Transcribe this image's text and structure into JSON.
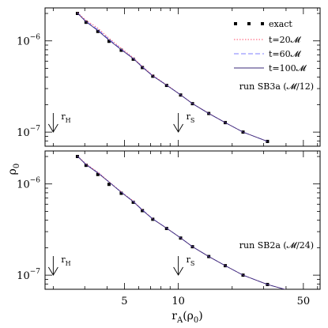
{
  "figure": {
    "ylabel": "ρ",
    "ylabel_sub": "0",
    "xlabel": "r",
    "xlabel_sub": "A",
    "xlabel_suffix": "(ρ",
    "xlabel_suffix_sub": "0",
    "xlabel_close": ")",
    "x_ticks": [
      {
        "value": 5,
        "label": "5"
      },
      {
        "value": 10,
        "label": "10"
      },
      {
        "value": 50,
        "label": "50"
      }
    ],
    "colors": {
      "exact": "#000000",
      "t20": "#ff4d6a",
      "t60": "#7f7fff",
      "t100": "#3b2a78"
    }
  },
  "legend": {
    "exact": "exact",
    "t20": "t=20𝓜",
    "t60": "t=60𝓜",
    "t100": "t=100𝓜"
  },
  "chart_data": [
    {
      "type": "line",
      "panel": "top",
      "annotation": "run SB3a (𝓜/12)",
      "xscale": "log",
      "yscale": "log",
      "xlim": [
        1.8,
        62
      ],
      "ylim": [
        7e-08,
        2.3e-06
      ],
      "y_ticks": [
        {
          "value": 1e-06,
          "base": "10",
          "exp": "−6"
        },
        {
          "value": 1e-07,
          "base": "10",
          "exp": "−7"
        }
      ],
      "markers": [
        {
          "label": "r",
          "sub": "H",
          "x": 2.0
        },
        {
          "label": "r",
          "sub": "S",
          "x": 10.0
        }
      ],
      "series": [
        {
          "name": "exact",
          "style": "squares",
          "x": [
            2.73,
            3.05,
            3.55,
            4.1,
            4.8,
            5.6,
            6.3,
            7.2,
            8.6,
            10.3,
            12.0,
            14.8,
            18.3,
            23.0,
            31.5
          ],
          "y": [
            2e-06,
            1.6e-06,
            1.27e-06,
            9.9e-07,
            7.9e-07,
            6.3e-07,
            5.1e-07,
            4.1e-07,
            3.25e-07,
            2.55e-07,
            2.05e-07,
            1.6e-07,
            1.27e-07,
            1e-07,
            7.9e-08
          ]
        },
        {
          "name": "t=20𝓜",
          "style": "dotted",
          "x": [
            2.73,
            3.05,
            3.55,
            4.1,
            4.8,
            5.6,
            6.3,
            7.2,
            8.6,
            10.3,
            12.0,
            14.8,
            18.3,
            23.0,
            31.5
          ],
          "y": [
            2.05e-06,
            1.68e-06,
            1.38e-06,
            1.07e-06,
            8.3e-07,
            6.55e-07,
            5.25e-07,
            4.2e-07,
            3.3e-07,
            2.57e-07,
            2.06e-07,
            1.61e-07,
            1.27e-07,
            1e-07,
            7.9e-08
          ]
        },
        {
          "name": "t=60𝓜",
          "style": "dashed",
          "x": [
            2.73,
            3.05,
            3.55,
            4.1,
            4.8,
            5.6,
            6.3,
            7.2,
            8.6,
            10.3,
            12.0,
            14.8,
            18.3,
            23.0,
            31.5
          ],
          "y": [
            2.03e-06,
            1.64e-06,
            1.33e-06,
            1.04e-06,
            8.1e-07,
            6.45e-07,
            5.2e-07,
            4.15e-07,
            3.28e-07,
            2.56e-07,
            2.05e-07,
            1.6e-07,
            1.27e-07,
            1e-07,
            7.9e-08
          ]
        },
        {
          "name": "t=100𝓜",
          "style": "solid",
          "x": [
            2.73,
            3.05,
            3.55,
            4.1,
            4.8,
            5.6,
            6.3,
            7.2,
            8.6,
            10.3,
            12.0,
            14.8,
            18.3,
            23.0,
            31.5
          ],
          "y": [
            2.02e-06,
            1.62e-06,
            1.3e-06,
            1.02e-06,
            8e-07,
            6.4e-07,
            5.15e-07,
            4.12e-07,
            3.27e-07,
            2.56e-07,
            2.05e-07,
            1.6e-07,
            1.27e-07,
            1e-07,
            7.9e-08
          ]
        }
      ]
    },
    {
      "type": "line",
      "panel": "bottom",
      "annotation": "run SB2a (𝓜/24)",
      "xscale": "log",
      "yscale": "log",
      "xlim": [
        1.8,
        62
      ],
      "ylim": [
        7e-08,
        2.3e-06
      ],
      "y_ticks": [
        {
          "value": 1e-06,
          "base": "10",
          "exp": "−6"
        },
        {
          "value": 1e-07,
          "base": "10",
          "exp": "−7"
        }
      ],
      "markers": [
        {
          "label": "r",
          "sub": "H",
          "x": 2.0
        },
        {
          "label": "r",
          "sub": "S",
          "x": 10.0
        }
      ],
      "series": [
        {
          "name": "exact",
          "style": "squares",
          "x": [
            2.73,
            3.05,
            3.55,
            4.1,
            4.8,
            5.6,
            6.3,
            7.2,
            8.6,
            10.3,
            12.0,
            14.8,
            18.3,
            23.0,
            31.5,
            52.0
          ],
          "y": [
            2e-06,
            1.6e-06,
            1.27e-06,
            9.9e-07,
            7.9e-07,
            6.3e-07,
            5.1e-07,
            4.1e-07,
            3.25e-07,
            2.55e-07,
            2.05e-07,
            1.6e-07,
            1.27e-07,
            1e-07,
            7.9e-08,
            6e-08
          ]
        },
        {
          "name": "t=20𝓜",
          "style": "dotted",
          "x": [
            2.73,
            3.05,
            3.55,
            4.1,
            4.8,
            5.6,
            6.3,
            7.2,
            8.6,
            10.3,
            12.0,
            14.8,
            18.3,
            23.0,
            31.5,
            52.0
          ],
          "y": [
            2.03e-06,
            1.66e-06,
            1.35e-06,
            1.06e-06,
            8.2e-07,
            6.5e-07,
            5.2e-07,
            4.15e-07,
            3.28e-07,
            2.56e-07,
            2.05e-07,
            1.6e-07,
            1.27e-07,
            1e-07,
            7.9e-08,
            6e-08
          ]
        },
        {
          "name": "t=60𝓜",
          "style": "dashed",
          "x": [
            2.73,
            3.05,
            3.55,
            4.1,
            4.8,
            5.6,
            6.3,
            7.2,
            8.6,
            10.3,
            12.0,
            14.8,
            18.3,
            23.0,
            31.5,
            52.0
          ],
          "y": [
            2.02e-06,
            1.64e-06,
            1.33e-06,
            1.05e-06,
            8.15e-07,
            6.45e-07,
            5.2e-07,
            4.15e-07,
            3.28e-07,
            2.56e-07,
            2.05e-07,
            1.6e-07,
            1.27e-07,
            1e-07,
            7.9e-08,
            6e-08
          ]
        },
        {
          "name": "t=100𝓜",
          "style": "solid",
          "x": [
            2.73,
            3.05,
            3.55,
            4.1,
            4.8,
            5.6,
            6.3,
            7.2,
            8.6,
            10.3,
            12.0,
            14.8,
            18.3,
            23.0,
            31.5,
            52.0
          ],
          "y": [
            2.02e-06,
            1.63e-06,
            1.32e-06,
            1.05e-06,
            8.1e-07,
            6.4e-07,
            5.15e-07,
            4.12e-07,
            3.27e-07,
            2.56e-07,
            2.05e-07,
            1.6e-07,
            1.27e-07,
            1e-07,
            7.9e-08,
            6e-08
          ]
        }
      ]
    }
  ]
}
